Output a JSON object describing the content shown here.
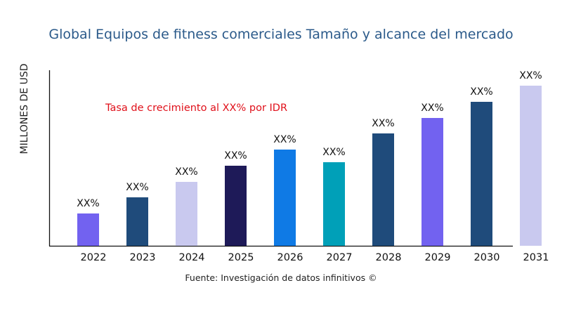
{
  "chart_data": {
    "type": "bar",
    "title": "Global Equipos de fitness comerciales Tamaño y alcance del mercado",
    "xlabel": "",
    "ylabel": "MILLONES DE USD",
    "annotation": "Tasa de crecimiento al XX% por IDR",
    "source": "Fuente: Investigación de datos infinitivos ©",
    "categories": [
      "2022",
      "2023",
      "2024",
      "2025",
      "2026",
      "2027",
      "2028",
      "2029",
      "2030",
      "2031"
    ],
    "values": [
      46,
      69,
      91,
      114,
      137,
      119,
      160,
      182,
      205,
      228
    ],
    "data_labels": [
      "XX%",
      "XX%",
      "XX%",
      "XX%",
      "XX%",
      "XX%",
      "XX%",
      "XX%",
      "XX%",
      "XX%"
    ],
    "colors": [
      "#7262f0",
      "#1f4b7b",
      "#c9c9ef",
      "#1e1a58",
      "#0f7ae5",
      "#00a0b8",
      "#1f4b7b",
      "#7262f0",
      "#1f4b7b",
      "#c9c9ef"
    ],
    "ylim": [
      0,
      250
    ],
    "grid": false,
    "legend": "none"
  }
}
